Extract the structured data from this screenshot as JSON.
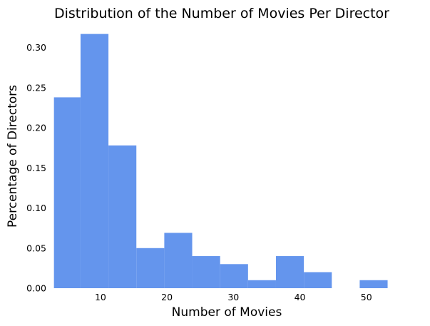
{
  "chart_data": {
    "type": "bar",
    "title": "Distribution of the Number of Movies Per Director",
    "xlabel": "Number of Movies",
    "ylabel": "Percentage of Directors",
    "xlim": [
      2.5,
      55.5
    ],
    "ylim": [
      0,
      0.33
    ],
    "grid": false,
    "color": "#6495ED",
    "bins": [
      {
        "x0": 3.0,
        "x1": 7.0,
        "value": 0.238
      },
      {
        "x0": 7.0,
        "x1": 11.2,
        "value": 0.317
      },
      {
        "x0": 11.2,
        "x1": 15.4,
        "value": 0.178
      },
      {
        "x0": 15.4,
        "x1": 19.6,
        "value": 0.05
      },
      {
        "x0": 19.6,
        "x1": 23.8,
        "value": 0.069
      },
      {
        "x0": 23.8,
        "x1": 28.0,
        "value": 0.04
      },
      {
        "x0": 28.0,
        "x1": 32.2,
        "value": 0.03
      },
      {
        "x0": 32.2,
        "x1": 36.4,
        "value": 0.01
      },
      {
        "x0": 36.4,
        "x1": 40.6,
        "value": 0.04
      },
      {
        "x0": 40.6,
        "x1": 44.8,
        "value": 0.02
      },
      {
        "x0": 44.8,
        "x1": 49.0,
        "value": 0.0
      },
      {
        "x0": 49.0,
        "x1": 53.2,
        "value": 0.01
      }
    ],
    "x_ticks": [
      {
        "value": 10,
        "label": "10"
      },
      {
        "value": 20,
        "label": "20"
      },
      {
        "value": 30,
        "label": "30"
      },
      {
        "value": 40,
        "label": "40"
      },
      {
        "value": 50,
        "label": "50"
      }
    ],
    "y_ticks": [
      {
        "value": 0.0,
        "label": "0.00"
      },
      {
        "value": 0.05,
        "label": "0.05"
      },
      {
        "value": 0.1,
        "label": "0.10"
      },
      {
        "value": 0.15,
        "label": "0.15"
      },
      {
        "value": 0.2,
        "label": "0.20"
      },
      {
        "value": 0.25,
        "label": "0.25"
      },
      {
        "value": 0.3,
        "label": "0.30"
      }
    ]
  }
}
